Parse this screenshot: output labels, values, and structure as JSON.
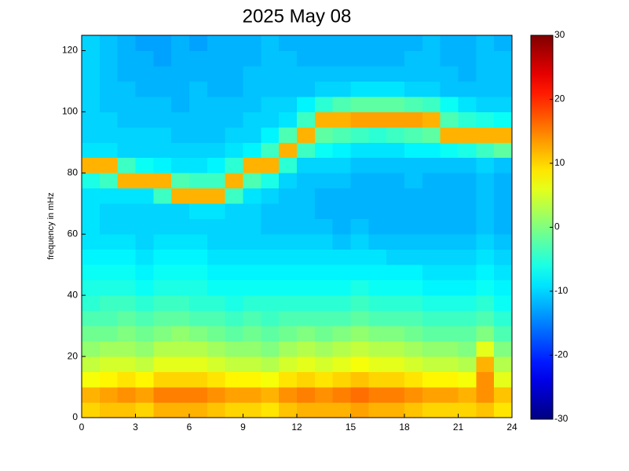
{
  "chart_data": {
    "type": "heatmap",
    "title": "2025 May 08",
    "ylabel": "frequency in mHz",
    "colormap": "jet",
    "xlim": [
      0,
      24
    ],
    "xticks": [
      0,
      3,
      6,
      9,
      12,
      15,
      18,
      21,
      24
    ],
    "ylim": [
      0,
      125
    ],
    "yticks": [
      0,
      20,
      40,
      60,
      80,
      100,
      120
    ],
    "clim": [
      -30,
      30
    ],
    "cticks": [
      -30,
      -20,
      -10,
      0,
      10,
      20,
      30
    ],
    "xbins": [
      0,
      1,
      2,
      3,
      4,
      5,
      6,
      7,
      8,
      9,
      10,
      11,
      12,
      13,
      14,
      15,
      16,
      17,
      18,
      19,
      20,
      21,
      22,
      23,
      24
    ],
    "ybins": [
      0,
      5,
      10,
      15,
      20,
      25,
      30,
      35,
      40,
      45,
      50,
      55,
      60,
      65,
      70,
      75,
      80,
      85,
      90,
      95,
      100,
      105,
      110,
      115,
      120,
      125
    ],
    "values": [
      [
        10,
        11,
        11,
        10,
        12,
        12,
        12,
        11,
        10,
        10,
        9,
        11,
        12,
        12,
        12,
        13,
        12,
        12,
        11,
        10,
        10,
        10,
        11,
        9
      ],
      [
        12,
        13,
        14,
        13,
        15,
        15,
        15,
        14,
        13,
        13,
        12,
        14,
        15,
        14,
        15,
        16,
        15,
        15,
        14,
        13,
        13,
        12,
        14,
        11
      ],
      [
        7,
        8,
        9,
        8,
        10,
        10,
        10,
        9,
        8,
        8,
        7,
        9,
        10,
        9,
        10,
        11,
        10,
        10,
        9,
        8,
        8,
        7,
        14,
        6
      ],
      [
        4,
        5,
        5,
        4,
        6,
        6,
        6,
        5,
        4,
        4,
        3,
        5,
        6,
        5,
        6,
        7,
        6,
        6,
        5,
        4,
        4,
        3,
        12,
        3
      ],
      [
        1,
        2,
        2,
        1,
        3,
        3,
        3,
        2,
        1,
        1,
        0,
        2,
        3,
        2,
        3,
        4,
        3,
        3,
        2,
        1,
        1,
        0,
        6,
        0
      ],
      [
        -1,
        -1,
        0,
        -1,
        0,
        1,
        0,
        -1,
        -2,
        -1,
        -2,
        -1,
        0,
        -1,
        0,
        1,
        0,
        0,
        -1,
        -2,
        -2,
        -2,
        0,
        -3
      ],
      [
        -3,
        -3,
        -2,
        -3,
        -2,
        -2,
        -3,
        -3,
        -4,
        -3,
        -4,
        -3,
        -3,
        -3,
        -3,
        -2,
        -3,
        -3,
        -3,
        -4,
        -4,
        -4,
        -3,
        -5
      ],
      [
        -5,
        -4,
        -4,
        -5,
        -4,
        -4,
        -5,
        -5,
        -6,
        -5,
        -5,
        -5,
        -5,
        -5,
        -5,
        -4,
        -5,
        -5,
        -5,
        -6,
        -6,
        -6,
        -5,
        -7
      ],
      [
        -6,
        -6,
        -6,
        -7,
        -6,
        -6,
        -6,
        -7,
        -7,
        -7,
        -7,
        -7,
        -7,
        -7,
        -7,
        -6,
        -7,
        -7,
        -7,
        -8,
        -8,
        -8,
        -7,
        -8
      ],
      [
        -7,
        -7,
        -7,
        -8,
        -7,
        -7,
        -7,
        -8,
        -8,
        -8,
        -8,
        -8,
        -8,
        -8,
        -8,
        -8,
        -8,
        -8,
        -8,
        -9,
        -9,
        -9,
        -8,
        -9
      ],
      [
        -8,
        -8,
        -8,
        -9,
        -8,
        -8,
        -8,
        -9,
        -9,
        -9,
        -9,
        -9,
        -9,
        -9,
        -9,
        -9,
        -9,
        -10,
        -10,
        -10,
        -10,
        -10,
        -9,
        -10
      ],
      [
        -9,
        -9,
        -9,
        -10,
        -9,
        -9,
        -9,
        -10,
        -10,
        -10,
        -10,
        -10,
        -10,
        -10,
        -11,
        -10,
        -11,
        -11,
        -11,
        -11,
        -11,
        -11,
        -10,
        -11
      ],
      [
        -9,
        -10,
        -10,
        -10,
        -10,
        -10,
        -10,
        -10,
        -10,
        -10,
        -11,
        -11,
        -11,
        -11,
        -12,
        -11,
        -12,
        -12,
        -12,
        -12,
        -12,
        -12,
        -11,
        -12
      ],
      [
        -9,
        -10,
        -10,
        -10,
        -10,
        -10,
        -9,
        -9,
        -10,
        -10,
        -11,
        -11,
        -11,
        -12,
        -12,
        -12,
        -12,
        -12,
        -12,
        -12,
        -12,
        -12,
        -11,
        -12
      ],
      [
        -9,
        -9,
        -9,
        -9,
        -4,
        12,
        12,
        12,
        -4,
        -9,
        -10,
        -11,
        -11,
        -12,
        -12,
        -12,
        -12,
        -12,
        -12,
        -12,
        -12,
        -12,
        -11,
        -12
      ],
      [
        -6,
        -4,
        12,
        12,
        12,
        -3,
        -4,
        -4,
        12,
        -3,
        -6,
        -10,
        -11,
        -11,
        -11,
        -12,
        -12,
        -12,
        -11,
        -12,
        -12,
        -12,
        -11,
        -12
      ],
      [
        12,
        12,
        -4,
        -7,
        -8,
        -9,
        -9,
        -8,
        -5,
        12,
        12,
        -5,
        -10,
        -10,
        -10,
        -11,
        -11,
        -11,
        -11,
        -11,
        -11,
        -11,
        -10,
        -11
      ],
      [
        -9,
        -9,
        -10,
        -10,
        -10,
        -10,
        -10,
        -10,
        -9,
        -8,
        -4,
        12,
        -4,
        -7,
        -8,
        -9,
        -9,
        -9,
        -8,
        -8,
        -7,
        -6,
        -4,
        -2
      ],
      [
        -10,
        -10,
        -10,
        -10,
        -10,
        -11,
        -11,
        -11,
        -10,
        -10,
        -8,
        -3,
        12,
        -2,
        -3,
        -4,
        -5,
        -4,
        -3,
        -2,
        12,
        12,
        12,
        12
      ],
      [
        -10,
        -10,
        -11,
        -11,
        -11,
        -11,
        -11,
        -11,
        -11,
        -10,
        -10,
        -9,
        -4,
        12,
        12,
        13,
        13,
        13,
        13,
        12,
        -3,
        -5,
        -6,
        -7
      ],
      [
        -10,
        -11,
        -11,
        -11,
        -11,
        -12,
        -11,
        -11,
        -11,
        -11,
        -10,
        -10,
        -8,
        -5,
        -3,
        -2,
        -2,
        -2,
        -3,
        -4,
        -7,
        -9,
        -10,
        -10
      ],
      [
        -10,
        -11,
        -11,
        -12,
        -12,
        -12,
        -11,
        -12,
        -12,
        -11,
        -11,
        -11,
        -11,
        -10,
        -10,
        -9,
        -9,
        -9,
        -10,
        -10,
        -11,
        -11,
        -11,
        -11
      ],
      [
        -10,
        -11,
        -12,
        -12,
        -12,
        -12,
        -12,
        -12,
        -12,
        -11,
        -11,
        -11,
        -11,
        -11,
        -11,
        -11,
        -11,
        -11,
        -11,
        -11,
        -11,
        -12,
        -11,
        -11
      ],
      [
        -10,
        -11,
        -12,
        -12,
        -13,
        -12,
        -12,
        -12,
        -12,
        -12,
        -11,
        -11,
        -12,
        -12,
        -12,
        -12,
        -12,
        -12,
        -11,
        -11,
        -12,
        -12,
        -11,
        -11
      ],
      [
        -10,
        -11,
        -12,
        -13,
        -13,
        -12,
        -13,
        -12,
        -12,
        -12,
        -11,
        -12,
        -12,
        -12,
        -12,
        -12,
        -12,
        -12,
        -12,
        -11,
        -12,
        -12,
        -11,
        -12
      ]
    ]
  }
}
